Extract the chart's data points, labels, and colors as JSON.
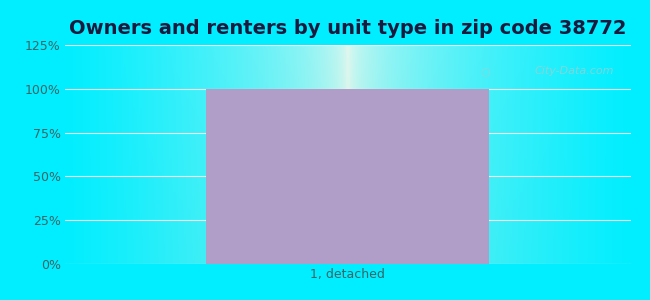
{
  "title": "Owners and renters by unit type in zip code 38772",
  "categories": [
    "1, detached"
  ],
  "values": [
    100
  ],
  "bar_color": "#b09ec8",
  "ylim": [
    0,
    125
  ],
  "yticks": [
    0,
    25,
    50,
    75,
    100,
    125
  ],
  "ytick_labels": [
    "0%",
    "25%",
    "50%",
    "75%",
    "100%",
    "125%"
  ],
  "title_fontsize": 14,
  "tick_fontsize": 9,
  "xlabel_fontsize": 9,
  "bg_cyan": "#00eeff",
  "bg_plot_center": "#eaf8ee",
  "bg_plot_center_bottom": "#d8f0e0",
  "watermark": "City-Data.com",
  "bar_width": 0.5,
  "title_color": "#1a1a3e",
  "tick_color": "#336666"
}
